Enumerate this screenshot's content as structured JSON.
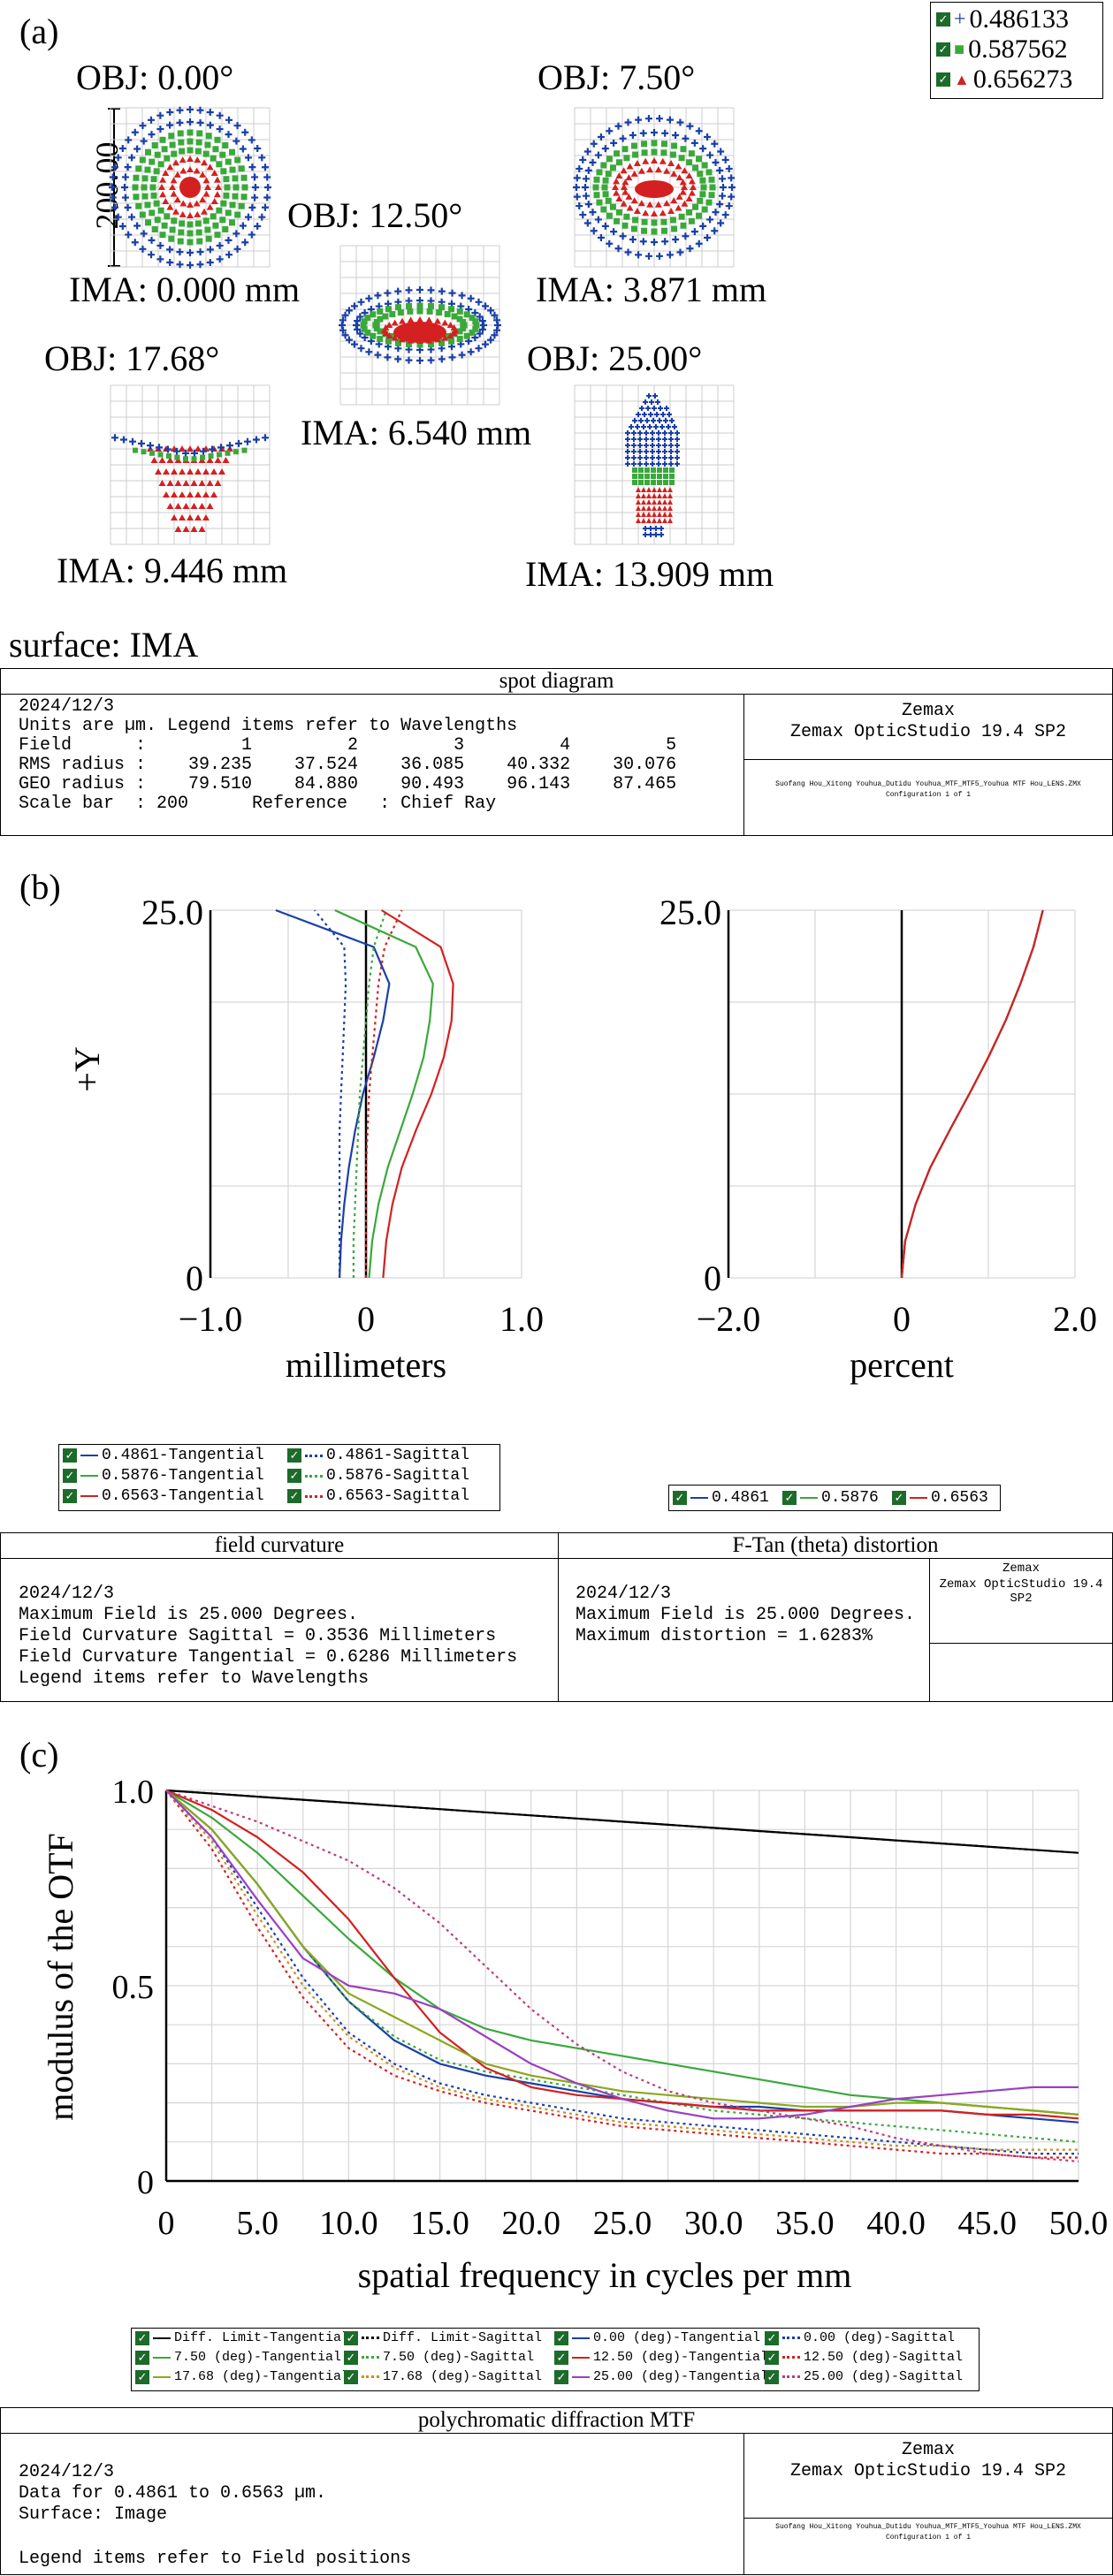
{
  "spot": {
    "panel": "(a)",
    "legend": [
      {
        "label": "0.486133",
        "color": "#1a3fa8",
        "marker": "+"
      },
      {
        "label": "0.587562",
        "color": "#3ba83b",
        "marker": "■"
      },
      {
        "label": "0.656273",
        "color": "#d42020",
        "marker": "▲"
      }
    ],
    "scale_label": "200.00",
    "fields": [
      {
        "obj": "OBJ: 0.00°",
        "ima": "IMA: 0.000 mm"
      },
      {
        "obj": "OBJ: 7.50°",
        "ima": "IMA: 3.871 mm"
      },
      {
        "obj": "OBJ: 12.50°",
        "ima": "IMA: 6.540 mm"
      },
      {
        "obj": "OBJ: 17.68°",
        "ima": "IMA: 9.446 mm"
      },
      {
        "obj": "OBJ: 25.00°",
        "ima": "IMA: 13.909 mm"
      }
    ],
    "surface": "surface: IMA",
    "box_title": "spot diagram",
    "lines": [
      "2024/12/3",
      "Units are µm. Legend items refer to Wavelengths",
      "Field      :         1         2         3         4         5",
      "RMS radius :    39.235    37.524    36.085    40.332    30.076",
      "GEO radius :    79.510    84.880    90.493    96.143    87.465",
      "Scale bar  : 200      Reference   : Chief Ray"
    ],
    "brand1": "Zemax",
    "brand2": "Zemax OpticStudio 19.4 SP2",
    "file_line": "Suofang Hou_Xitong Youhua_Dutidu Youhua_MTF_MTF5_Youhua MTF Hou_LENS.ZMX",
    "config_line": "Configuration 1 of 1"
  },
  "field_curvature": {
    "panel": "(b)",
    "box_title_left": "field curvature",
    "box_title_right": "F-Tan (theta) distortion",
    "left_lines": [
      "2024/12/3",
      "Maximum Field is 25.000 Degrees.",
      "Field Curvature Sagittal = 0.3536 Millimeters",
      "Field Curvature Tangential = 0.6286 Millimeters",
      "Legend items refer to Wavelengths"
    ],
    "right_lines": [
      "2024/12/3",
      "Maximum Field is 25.000 Degrees.",
      "Maximum distortion = 1.6283%"
    ],
    "brand1": "Zemax",
    "brand2": "Zemax OpticStudio 19.4 SP2",
    "legend_left": [
      {
        "label": "0.4861-Tangential",
        "color": "#1a3fa8",
        "dotted": false
      },
      {
        "label": "0.4861-Sagittal",
        "color": "#1a3fa8",
        "dotted": true
      },
      {
        "label": "0.5876-Tangential",
        "color": "#3ba83b",
        "dotted": false
      },
      {
        "label": "0.5876-Sagittal",
        "color": "#3ba83b",
        "dotted": true
      },
      {
        "label": "0.6563-Tangential",
        "color": "#d42020",
        "dotted": false
      },
      {
        "label": "0.6563-Sagittal",
        "color": "#d42020",
        "dotted": true
      }
    ],
    "legend_right": [
      {
        "label": "0.4861",
        "color": "#1a3fa8"
      },
      {
        "label": "0.5876",
        "color": "#3ba83b"
      },
      {
        "label": "0.6563",
        "color": "#d42020"
      }
    ]
  },
  "mtf": {
    "panel": "(c)",
    "box_title": "polychromatic diffraction MTF",
    "lines": [
      "2024/12/3",
      "Data for 0.4861 to 0.6563 µm.",
      "Surface: Image",
      "",
      "Legend items refer to Field positions"
    ],
    "brand1": "Zemax",
    "brand2": "Zemax OpticStudio 19.4 SP2",
    "file_line": "Suofang Hou_Xitong Youhua_Dutidu Youhua_MTF_MTF5_Youhua MTF Hou_LENS.ZMX",
    "config_line": "Configuration 1 of 1"
  },
  "chart_data": [
    {
      "type": "line",
      "title": "",
      "xlabel": "millimeters",
      "ylabel": "+Y",
      "xlim": [
        -1.0,
        1.0
      ],
      "ylim": [
        0,
        25.0
      ],
      "xticks": [
        "−1.0",
        "0",
        "1.0"
      ],
      "yticks": [
        "0",
        "25.0"
      ],
      "grid": true,
      "y": [
        0,
        2.5,
        5,
        7.5,
        10,
        12.5,
        15,
        17.5,
        20,
        22.5,
        25
      ],
      "series": [
        {
          "name": "0.4861-Tangential",
          "color": "#1a3fa8",
          "dash": false,
          "values": [
            -0.17,
            -0.16,
            -0.14,
            -0.11,
            -0.07,
            -0.02,
            0.05,
            0.11,
            0.15,
            0.05,
            -0.58
          ]
        },
        {
          "name": "0.4861-Sagittal",
          "color": "#1a3fa8",
          "dash": true,
          "values": [
            -0.17,
            -0.17,
            -0.17,
            -0.17,
            -0.17,
            -0.16,
            -0.15,
            -0.14,
            -0.13,
            -0.14,
            -0.33
          ]
        },
        {
          "name": "0.5876-Tangential",
          "color": "#3ba83b",
          "dash": false,
          "values": [
            0.02,
            0.04,
            0.08,
            0.14,
            0.22,
            0.3,
            0.37,
            0.41,
            0.43,
            0.32,
            -0.2
          ]
        },
        {
          "name": "0.5876-Sagittal",
          "color": "#3ba83b",
          "dash": true,
          "values": [
            -0.08,
            -0.08,
            -0.07,
            -0.06,
            -0.05,
            -0.04,
            -0.02,
            0.0,
            0.02,
            0.05,
            0.13
          ]
        },
        {
          "name": "0.6563-Tangential",
          "color": "#d42020",
          "dash": false,
          "values": [
            0.11,
            0.13,
            0.17,
            0.23,
            0.32,
            0.42,
            0.5,
            0.55,
            0.56,
            0.48,
            0.1
          ]
        },
        {
          "name": "0.6563-Sagittal",
          "color": "#d42020",
          "dash": true,
          "values": [
            0.0,
            0.0,
            0.0,
            0.0,
            0.01,
            0.02,
            0.04,
            0.06,
            0.08,
            0.12,
            0.23
          ]
        }
      ]
    },
    {
      "type": "line",
      "title": "",
      "xlabel": "percent",
      "ylabel": "",
      "xlim": [
        -2.0,
        2.0
      ],
      "ylim": [
        0,
        25.0
      ],
      "xticks": [
        "−2.0",
        "0",
        "2.0"
      ],
      "yticks": [
        "0",
        "25.0"
      ],
      "grid": true,
      "y": [
        0,
        2.5,
        5,
        7.5,
        10,
        12.5,
        15,
        17.5,
        20,
        22.5,
        25
      ],
      "series": [
        {
          "name": "0.4861",
          "color": "#1a3fa8",
          "dash": false,
          "values": [
            0.0,
            0.04,
            0.16,
            0.33,
            0.55,
            0.78,
            1.0,
            1.2,
            1.37,
            1.52,
            1.63
          ]
        },
        {
          "name": "0.5876",
          "color": "#3ba83b",
          "dash": false,
          "values": [
            0.0,
            0.04,
            0.16,
            0.33,
            0.55,
            0.78,
            1.0,
            1.2,
            1.37,
            1.52,
            1.63
          ]
        },
        {
          "name": "0.6563",
          "color": "#d42020",
          "dash": false,
          "values": [
            0.0,
            0.04,
            0.16,
            0.33,
            0.55,
            0.78,
            1.0,
            1.2,
            1.37,
            1.52,
            1.63
          ]
        }
      ]
    },
    {
      "type": "line",
      "title": "",
      "xlabel": "spatial frequency in cycles per mm",
      "ylabel": "modulus of the OTF",
      "xlim": [
        0,
        50.0
      ],
      "ylim": [
        0,
        1.0
      ],
      "xticks": [
        "0",
        "5.0",
        "10.0",
        "15.0",
        "20.0",
        "25.0",
        "30.0",
        "35.0",
        "40.0",
        "45.0",
        "50.0"
      ],
      "yticks": [
        "0",
        "0.5",
        "1.0"
      ],
      "grid": true,
      "x": [
        0,
        2.5,
        5,
        7.5,
        10,
        12.5,
        15,
        17.5,
        20,
        22.5,
        25,
        27.5,
        30,
        32.5,
        35,
        37.5,
        40,
        42.5,
        45,
        47.5,
        50
      ],
      "series": [
        {
          "name": "Diff. Limit-Tangential",
          "color": "#000000",
          "dash": false,
          "values": [
            1.0,
            0.992,
            0.984,
            0.976,
            0.968,
            0.96,
            0.952,
            0.944,
            0.936,
            0.928,
            0.92,
            0.912,
            0.904,
            0.896,
            0.888,
            0.88,
            0.872,
            0.864,
            0.856,
            0.848,
            0.84
          ]
        },
        {
          "name": "Diff. Limit-Sagittal",
          "color": "#000000",
          "dash": true,
          "values": [
            1.0,
            0.992,
            0.984,
            0.976,
            0.968,
            0.96,
            0.952,
            0.944,
            0.936,
            0.928,
            0.92,
            0.912,
            0.904,
            0.896,
            0.888,
            0.88,
            0.872,
            0.864,
            0.856,
            0.848,
            0.84
          ]
        },
        {
          "name": "0.00 (deg)-Tangential",
          "color": "#1a3fa8",
          "dash": false,
          "values": [
            1.0,
            0.9,
            0.76,
            0.6,
            0.46,
            0.36,
            0.3,
            0.27,
            0.25,
            0.23,
            0.21,
            0.2,
            0.19,
            0.19,
            0.18,
            0.18,
            0.18,
            0.18,
            0.17,
            0.16,
            0.15
          ]
        },
        {
          "name": "0.00 (deg)-Sagittal",
          "color": "#1a3fa8",
          "dash": true,
          "values": [
            1.0,
            0.88,
            0.7,
            0.52,
            0.38,
            0.3,
            0.25,
            0.22,
            0.2,
            0.18,
            0.16,
            0.15,
            0.14,
            0.13,
            0.12,
            0.11,
            0.1,
            0.09,
            0.08,
            0.07,
            0.07
          ]
        },
        {
          "name": "7.50 (deg)-Tangential",
          "color": "#3ba83b",
          "dash": false,
          "values": [
            1.0,
            0.93,
            0.84,
            0.73,
            0.62,
            0.52,
            0.44,
            0.39,
            0.36,
            0.34,
            0.32,
            0.3,
            0.28,
            0.26,
            0.24,
            0.22,
            0.21,
            0.2,
            0.19,
            0.18,
            0.17
          ]
        },
        {
          "name": "7.50 (deg)-Sagittal",
          "color": "#3ba83b",
          "dash": true,
          "values": [
            1.0,
            0.9,
            0.76,
            0.6,
            0.46,
            0.37,
            0.31,
            0.28,
            0.26,
            0.24,
            0.22,
            0.2,
            0.18,
            0.17,
            0.16,
            0.15,
            0.14,
            0.13,
            0.12,
            0.11,
            0.1
          ]
        },
        {
          "name": "12.50 (deg)-Tangential",
          "color": "#d42020",
          "dash": false,
          "values": [
            1.0,
            0.95,
            0.88,
            0.79,
            0.67,
            0.52,
            0.38,
            0.29,
            0.24,
            0.22,
            0.21,
            0.2,
            0.19,
            0.18,
            0.18,
            0.18,
            0.18,
            0.18,
            0.17,
            0.17,
            0.16
          ]
        },
        {
          "name": "12.50 (deg)-Sagittal",
          "color": "#d42020",
          "dash": true,
          "values": [
            1.0,
            0.85,
            0.65,
            0.47,
            0.34,
            0.27,
            0.23,
            0.2,
            0.18,
            0.16,
            0.14,
            0.13,
            0.12,
            0.11,
            0.1,
            0.09,
            0.08,
            0.07,
            0.07,
            0.06,
            0.06
          ]
        },
        {
          "name": "17.68 (deg)-Tangential",
          "color": "#8aa820",
          "dash": false,
          "values": [
            1.0,
            0.9,
            0.76,
            0.6,
            0.48,
            0.42,
            0.36,
            0.3,
            0.27,
            0.25,
            0.23,
            0.22,
            0.21,
            0.2,
            0.19,
            0.19,
            0.2,
            0.2,
            0.19,
            0.18,
            0.17
          ]
        },
        {
          "name": "17.68 (deg)-Sagittal",
          "color": "#c89020",
          "dash": true,
          "values": [
            1.0,
            0.87,
            0.68,
            0.5,
            0.37,
            0.29,
            0.24,
            0.21,
            0.19,
            0.17,
            0.15,
            0.14,
            0.13,
            0.12,
            0.11,
            0.1,
            0.09,
            0.09,
            0.08,
            0.08,
            0.08
          ]
        },
        {
          "name": "25.00 (deg)-Tangential",
          "color": "#9a40c0",
          "dash": false,
          "values": [
            1.0,
            0.88,
            0.72,
            0.57,
            0.5,
            0.48,
            0.44,
            0.37,
            0.3,
            0.25,
            0.21,
            0.18,
            0.16,
            0.16,
            0.17,
            0.19,
            0.21,
            0.22,
            0.23,
            0.24,
            0.24
          ]
        },
        {
          "name": "25.00 (deg)-Sagittal",
          "color": "#c03a80",
          "dash": true,
          "values": [
            1.0,
            0.96,
            0.92,
            0.87,
            0.82,
            0.75,
            0.66,
            0.55,
            0.44,
            0.35,
            0.28,
            0.23,
            0.2,
            0.18,
            0.16,
            0.14,
            0.11,
            0.09,
            0.07,
            0.06,
            0.05
          ]
        }
      ]
    }
  ]
}
